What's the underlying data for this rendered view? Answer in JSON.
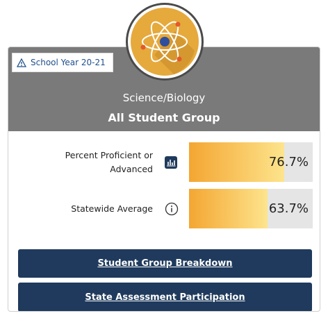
{
  "header": {
    "badge": "School Year 20-21",
    "subject": "Science/Biology",
    "group": "All Student Group"
  },
  "metrics": [
    {
      "label": "Percent Proficient or Advanced",
      "value": 76.7,
      "value_label": "76.7%"
    },
    {
      "label": "Statewide Average",
      "value": 63.7,
      "value_label": "63.7%"
    }
  ],
  "buttons": [
    "Student Group Breakdown",
    "State Assessment Participation"
  ]
}
